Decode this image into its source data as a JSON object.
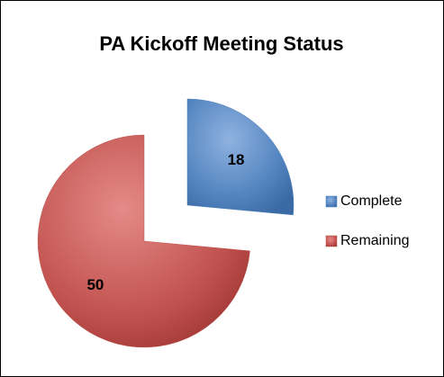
{
  "chart_data": {
    "type": "pie",
    "title": "PA Kickoff Meeting Status",
    "categories": [
      "Complete",
      "Remaining"
    ],
    "values": [
      18,
      50
    ],
    "colors": [
      "#4f81bd",
      "#c0504d"
    ],
    "legend": "right"
  }
}
